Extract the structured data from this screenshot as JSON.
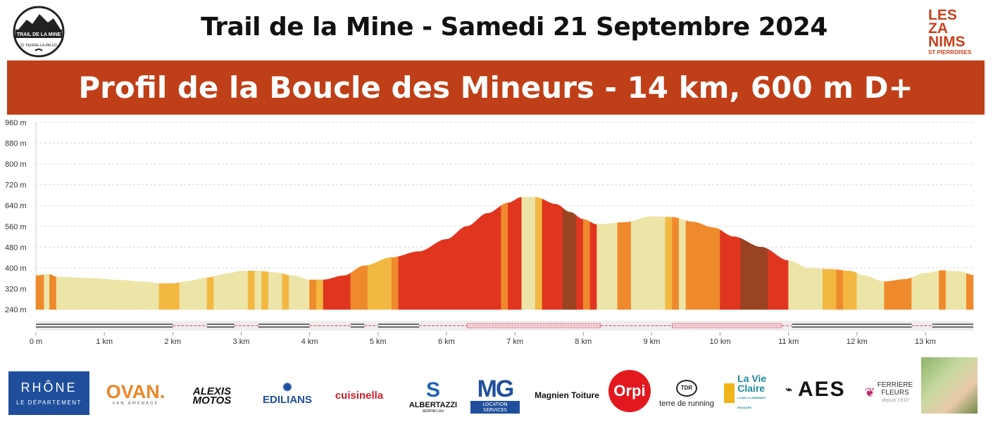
{
  "header": {
    "title": "Trail de la Mine - Samedi 21 Septembre 2024",
    "banner": "Profil de la Boucle des Mineurs - 14 km, 600 m D+",
    "logo_left_line1": "TRAIL DE LA MINE",
    "logo_left_line2": "ST PIERRE-LA-PALUD",
    "logo_right_lines": [
      "LES",
      "ZA",
      "NIMS"
    ],
    "logo_right_sub": "ST PIERROISES"
  },
  "chart_data": {
    "type": "area",
    "title": "",
    "xlabel": "",
    "ylabel": "",
    "x_unit": "km",
    "y_unit": "m",
    "xlim": [
      0,
      13.7
    ],
    "ylim": [
      240,
      960
    ],
    "y_ticks": [
      240,
      320,
      400,
      480,
      560,
      640,
      720,
      800,
      880,
      960
    ],
    "y_tick_labels": [
      "240 m",
      "320 m",
      "400 m",
      "480 m",
      "560 m",
      "640 m",
      "720 m",
      "800 m",
      "880 m",
      "960 m"
    ],
    "x_ticks": [
      0,
      1,
      2,
      3,
      4,
      5,
      6,
      7,
      8,
      9,
      10,
      11,
      12,
      13
    ],
    "x_tick_labels": [
      "0 m",
      "1 km",
      "2 km",
      "3 km",
      "4 km",
      "5 km",
      "6 km",
      "7 km",
      "8 km",
      "9 km",
      "10 km",
      "11 km",
      "12 km",
      "13 km"
    ],
    "grid": "horizontal dashed",
    "series": [
      {
        "x": [
          0,
          0.2,
          0.3,
          0.8,
          1.2,
          1.6,
          1.8,
          2.0,
          2.2,
          2.5,
          2.8,
          3.0,
          3.25,
          3.5,
          3.75,
          4.0,
          4.2,
          4.5,
          4.8,
          5.2,
          5.6,
          6.0,
          6.3,
          6.6,
          6.9,
          7.1,
          7.3,
          7.6,
          7.8,
          8.0,
          8.2,
          8.6,
          9.0,
          9.3,
          9.6,
          9.9,
          10.2,
          10.6,
          11.0,
          11.3,
          11.6,
          11.9,
          12.1,
          12.4,
          12.7,
          13.0,
          13.25,
          13.5,
          13.7
        ],
        "y": [
          370,
          375,
          365,
          360,
          353,
          346,
          340,
          340,
          348,
          362,
          378,
          388,
          388,
          382,
          370,
          354,
          354,
          370,
          408,
          440,
          463,
          510,
          560,
          610,
          650,
          672,
          672,
          645,
          615,
          587,
          567,
          575,
          598,
          595,
          577,
          555,
          520,
          480,
          428,
          398,
          395,
          388,
          370,
          347,
          356,
          380,
          390,
          386,
          372
        ]
      }
    ],
    "segment_palette": [
      "#ece5a7",
      "#f2b842",
      "#ef8a2c",
      "#e0361f",
      "#9a4322"
    ],
    "segments": [
      {
        "from": 0.0,
        "to": 0.12,
        "c": 2
      },
      {
        "from": 0.12,
        "to": 0.2,
        "c": 0
      },
      {
        "from": 0.2,
        "to": 0.3,
        "c": 2
      },
      {
        "from": 0.3,
        "to": 1.8,
        "c": 0
      },
      {
        "from": 1.8,
        "to": 2.1,
        "c": 1
      },
      {
        "from": 2.1,
        "to": 2.5,
        "c": 0
      },
      {
        "from": 2.5,
        "to": 2.6,
        "c": 1
      },
      {
        "from": 2.6,
        "to": 3.1,
        "c": 0
      },
      {
        "from": 3.1,
        "to": 3.2,
        "c": 1
      },
      {
        "from": 3.2,
        "to": 3.3,
        "c": 0
      },
      {
        "from": 3.3,
        "to": 3.4,
        "c": 1
      },
      {
        "from": 3.4,
        "to": 3.6,
        "c": 0
      },
      {
        "from": 3.6,
        "to": 3.7,
        "c": 1
      },
      {
        "from": 3.7,
        "to": 4.0,
        "c": 0
      },
      {
        "from": 4.0,
        "to": 4.1,
        "c": 2
      },
      {
        "from": 4.1,
        "to": 4.2,
        "c": 1
      },
      {
        "from": 4.2,
        "to": 4.6,
        "c": 3
      },
      {
        "from": 4.6,
        "to": 4.85,
        "c": 2
      },
      {
        "from": 4.85,
        "to": 5.2,
        "c": 1
      },
      {
        "from": 5.2,
        "to": 5.3,
        "c": 2
      },
      {
        "from": 5.3,
        "to": 6.8,
        "c": 3
      },
      {
        "from": 6.8,
        "to": 6.9,
        "c": 2
      },
      {
        "from": 6.9,
        "to": 7.1,
        "c": 3
      },
      {
        "from": 7.1,
        "to": 7.3,
        "c": 0
      },
      {
        "from": 7.3,
        "to": 7.4,
        "c": 1
      },
      {
        "from": 7.4,
        "to": 7.7,
        "c": 3
      },
      {
        "from": 7.7,
        "to": 7.9,
        "c": 4
      },
      {
        "from": 7.9,
        "to": 8.0,
        "c": 3
      },
      {
        "from": 8.0,
        "to": 8.1,
        "c": 2
      },
      {
        "from": 8.1,
        "to": 8.2,
        "c": 3
      },
      {
        "from": 8.2,
        "to": 8.5,
        "c": 0
      },
      {
        "from": 8.5,
        "to": 8.7,
        "c": 2
      },
      {
        "from": 8.7,
        "to": 9.2,
        "c": 0
      },
      {
        "from": 9.2,
        "to": 9.3,
        "c": 1
      },
      {
        "from": 9.3,
        "to": 9.4,
        "c": 2
      },
      {
        "from": 9.4,
        "to": 9.5,
        "c": 0
      },
      {
        "from": 9.5,
        "to": 9.6,
        "c": 2
      },
      {
        "from": 9.6,
        "to": 10.0,
        "c": 2
      },
      {
        "from": 10.0,
        "to": 10.3,
        "c": 3
      },
      {
        "from": 10.3,
        "to": 10.7,
        "c": 4
      },
      {
        "from": 10.7,
        "to": 11.0,
        "c": 3
      },
      {
        "from": 11.0,
        "to": 11.5,
        "c": 0
      },
      {
        "from": 11.5,
        "to": 11.7,
        "c": 1
      },
      {
        "from": 11.7,
        "to": 11.8,
        "c": 2
      },
      {
        "from": 11.8,
        "to": 12.0,
        "c": 1
      },
      {
        "from": 12.0,
        "to": 12.4,
        "c": 0
      },
      {
        "from": 12.4,
        "to": 12.8,
        "c": 2
      },
      {
        "from": 12.8,
        "to": 13.2,
        "c": 0
      },
      {
        "from": 13.2,
        "to": 13.3,
        "c": 2
      },
      {
        "from": 13.3,
        "to": 13.6,
        "c": 0
      },
      {
        "from": 13.6,
        "to": 13.7,
        "c": 2
      }
    ],
    "surface_bar": [
      {
        "from": 0.0,
        "to": 2.0,
        "t": "road"
      },
      {
        "from": 2.0,
        "to": 2.5,
        "t": "trail"
      },
      {
        "from": 2.5,
        "to": 2.9,
        "t": "road"
      },
      {
        "from": 2.9,
        "to": 3.25,
        "t": "trail"
      },
      {
        "from": 3.25,
        "to": 4.0,
        "t": "road"
      },
      {
        "from": 4.0,
        "to": 4.6,
        "t": "trail"
      },
      {
        "from": 4.6,
        "to": 4.8,
        "t": "road"
      },
      {
        "from": 4.8,
        "to": 5.0,
        "t": "trail"
      },
      {
        "from": 5.0,
        "to": 5.6,
        "t": "road"
      },
      {
        "from": 5.6,
        "to": 6.3,
        "t": "trail"
      },
      {
        "from": 6.3,
        "to": 8.25,
        "t": "dotted"
      },
      {
        "from": 8.25,
        "to": 9.3,
        "t": "trail"
      },
      {
        "from": 9.3,
        "to": 10.9,
        "t": "dotted"
      },
      {
        "from": 10.9,
        "to": 11.05,
        "t": "trail"
      },
      {
        "from": 11.05,
        "to": 12.8,
        "t": "road"
      },
      {
        "from": 12.8,
        "to": 13.1,
        "t": "trail"
      },
      {
        "from": 13.1,
        "to": 13.7,
        "t": "road"
      }
    ]
  },
  "sponsors": {
    "rhone": "RHÔNE",
    "rhone_sub": "LE DÉPARTEMENT",
    "ovan": "OVAN.",
    "ovan_sub": "VAN AMENAGE",
    "alexis_1": "ALEXIS",
    "alexis_2": "MOTOS",
    "edilians": "EDILIANS",
    "cuisinella": "cuisinella",
    "albertazzi": "ALBERTAZZI",
    "albertazzi_sub": "SERFIM LAU",
    "mg": "MG",
    "mg_sub": "LOCATION SERVICES",
    "magnien": "Magnien Toiture",
    "orpi": "Orpi",
    "tdr": "terre de running",
    "tdr_badge": "TDR",
    "lavie": "La Vie Claire",
    "lavie_sub": "LA BIO CLAIREMENT ENGAGÉE",
    "aes": "AES",
    "ferriere_1": "FERRIERE",
    "ferriere_2": "FLEURS",
    "ferriere_sub": "depuis 1910"
  }
}
